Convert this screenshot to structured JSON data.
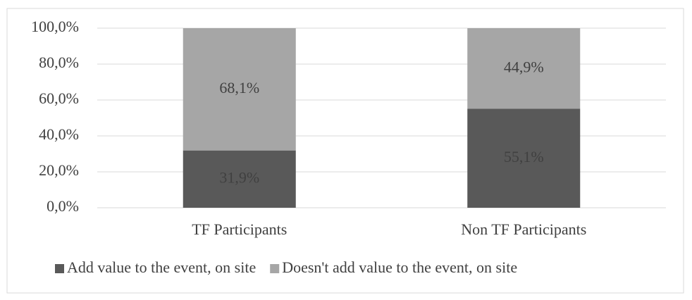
{
  "chart_data": {
    "type": "stacked-bar",
    "categories": [
      "TF Participants",
      "Non TF Participants"
    ],
    "series": [
      {
        "name": "Add value to the event, on site",
        "color": "#595959",
        "values": [
          31.9,
          55.1
        ],
        "value_labels": [
          "31,9%",
          "55,1%"
        ]
      },
      {
        "name": "Doesn't add value to the event, on site",
        "color": "#a6a6a6",
        "values": [
          68.1,
          44.9
        ],
        "value_labels": [
          "68,1%",
          "44,9%"
        ]
      }
    ],
    "ylim": [
      0,
      100
    ],
    "yticks": [
      {
        "value": 0,
        "label": "0,0%"
      },
      {
        "value": 20,
        "label": "20,0%"
      },
      {
        "value": 40,
        "label": "40,0%"
      },
      {
        "value": 60,
        "label": "60,0%"
      },
      {
        "value": 80,
        "label": "80,0%"
      },
      {
        "value": 100,
        "label": "100,0%"
      }
    ],
    "grid": true,
    "legend": "bottom"
  }
}
